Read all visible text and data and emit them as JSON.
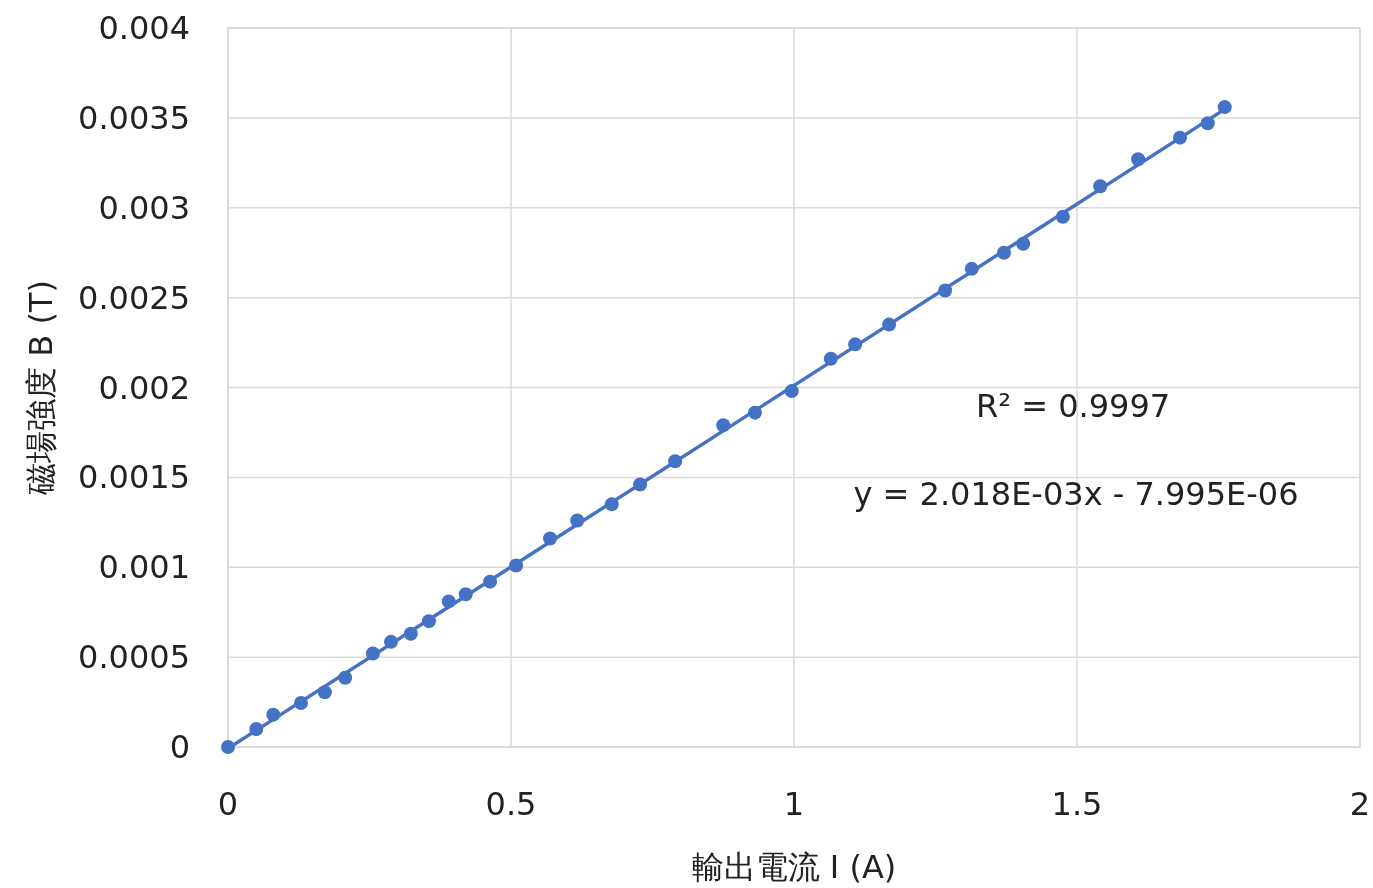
{
  "chart_data": {
    "type": "scatter",
    "xlabel": "輸出電流 I (A)",
    "ylabel": "磁場強度 B (T)",
    "xlim": [
      0,
      2
    ],
    "xticks": [
      0,
      0.5,
      1,
      1.5,
      2
    ],
    "ylim": [
      0,
      0.004
    ],
    "yticks": [
      0,
      0.0005,
      0.001,
      0.0015,
      0.002,
      0.0025,
      0.003,
      0.0035,
      0.004
    ],
    "grid": true,
    "series": [
      {
        "marker": "circle",
        "color": "#4472c4",
        "x": [
          0,
          0.05,
          0.08,
          0.129,
          0.171,
          0.207,
          0.256,
          0.288,
          0.323,
          0.355,
          0.39,
          0.42,
          0.463,
          0.509,
          0.569,
          0.617,
          0.678,
          0.728,
          0.79,
          0.875,
          0.931,
          0.996,
          1.065,
          1.108,
          1.168,
          1.267,
          1.314,
          1.371,
          1.405,
          1.475,
          1.541,
          1.608,
          1.682,
          1.731,
          1.761
        ],
        "values": [
          0,
          0.0001,
          0.00018,
          0.000245,
          0.000305,
          0.000385,
          0.00052,
          0.000585,
          0.00063,
          0.0007,
          0.00081,
          0.00085,
          0.00092,
          0.00101,
          0.00116,
          0.00126,
          0.00135,
          0.00146,
          0.00159,
          0.00179,
          0.00186,
          0.00198,
          0.00216,
          0.00224,
          0.00235,
          0.00254,
          0.00266,
          0.00275,
          0.0028,
          0.00295,
          0.00312,
          0.00327,
          0.00339,
          0.00347,
          0.00356
        ]
      },
      {
        "type": "line",
        "color": "#4472c4",
        "x": [
          0.004,
          1.762
        ],
        "values": [
          0,
          0.00355
        ]
      }
    ],
    "annotations": [
      "R² = 0.9997",
      "y = 2.018E-03x - 7.995E-06"
    ]
  }
}
